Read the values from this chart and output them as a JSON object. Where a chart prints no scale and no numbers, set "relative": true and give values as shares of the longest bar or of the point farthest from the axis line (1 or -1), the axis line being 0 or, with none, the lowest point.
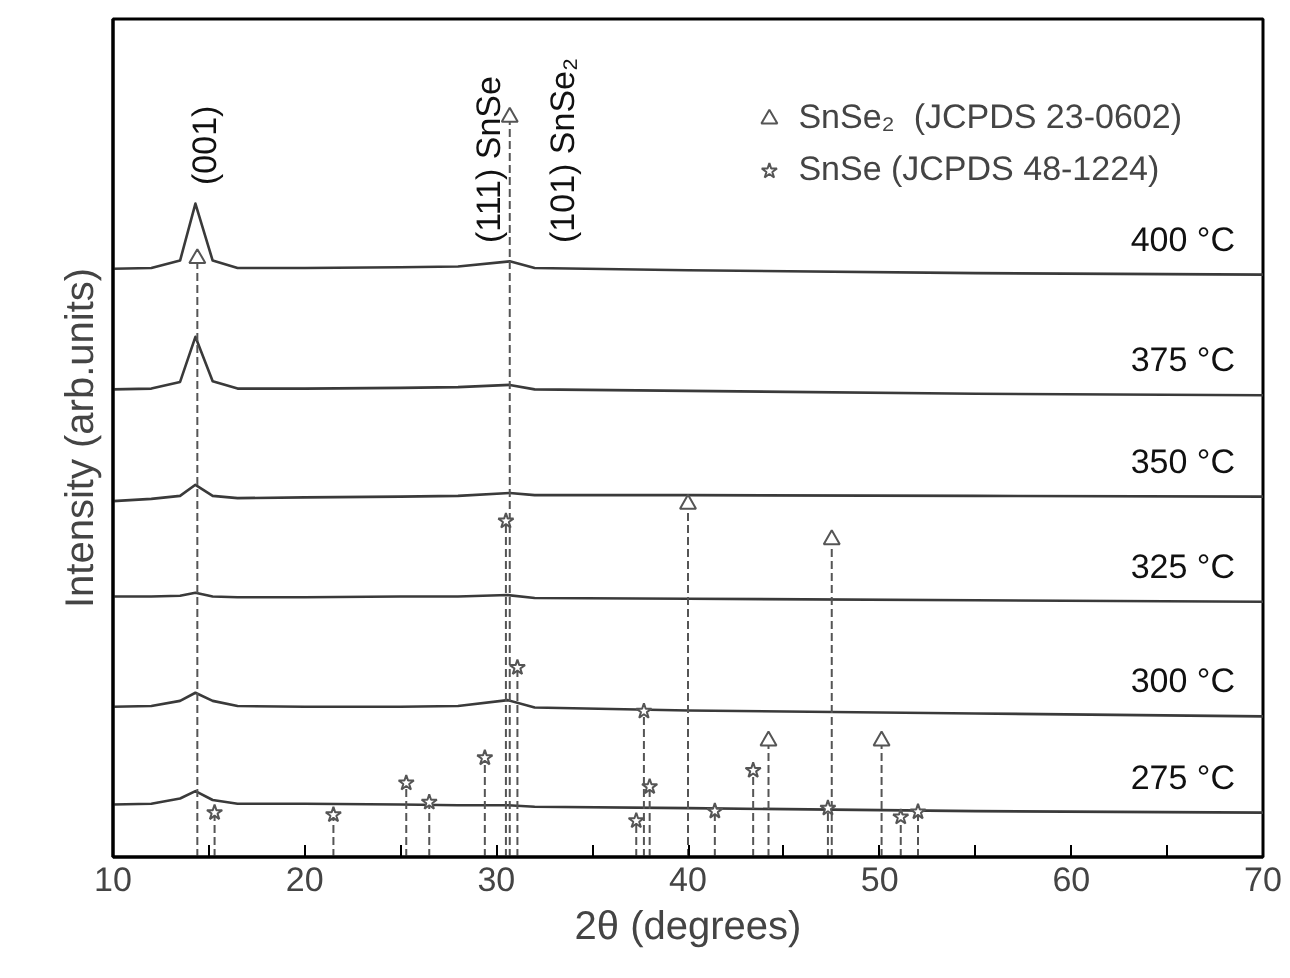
{
  "chart_data": {
    "type": "line",
    "relative": true,
    "xlabel": "2θ (degrees)",
    "ylabel": "Intensity (arb.units)",
    "xlim": [
      10,
      70
    ],
    "xticks": [
      10,
      {
        "value": 15,
        "label": null
      },
      20,
      {
        "value": 25,
        "label": null
      },
      30,
      {
        "value": 35,
        "label": null
      },
      40,
      {
        "value": 45,
        "label": null
      },
      50,
      {
        "value": 55,
        "label": null
      },
      60,
      {
        "value": 65,
        "label": null
      },
      70
    ],
    "grid": false,
    "legend": "top right",
    "line_style": "solid",
    "marker": "none",
    "series": [
      {
        "name": "400 °C",
        "color": "#3a3a3a",
        "x": [
          10,
          12,
          13.5,
          14.3,
          15.2,
          16.5,
          20,
          25,
          28,
          30.7,
          32,
          40,
          55,
          70
        ],
        "values": [
          0.795,
          0.796,
          0.806,
          0.883,
          0.806,
          0.796,
          0.796,
          0.797,
          0.798,
          0.805,
          0.796,
          0.793,
          0.789,
          0.787
        ]
      },
      {
        "name": "375 °C",
        "color": "#3a3a3a",
        "x": [
          10,
          12,
          13.5,
          14.3,
          15.2,
          16.5,
          20,
          25,
          28,
          30.7,
          32,
          40,
          55,
          70
        ],
        "values": [
          0.632,
          0.633,
          0.642,
          0.703,
          0.643,
          0.633,
          0.633,
          0.634,
          0.635,
          0.638,
          0.632,
          0.63,
          0.626,
          0.624
        ]
      },
      {
        "name": "350 °C",
        "color": "#3a3a3a",
        "x": [
          10,
          12,
          13.5,
          14.3,
          15.2,
          16.5,
          20,
          25,
          28,
          30.7,
          32,
          40,
          55,
          70
        ],
        "values": [
          0.481,
          0.484,
          0.488,
          0.503,
          0.488,
          0.485,
          0.486,
          0.487,
          0.488,
          0.492,
          0.489,
          0.489,
          0.488,
          0.487
        ]
      },
      {
        "name": "325 °C",
        "color": "#3a3a3a",
        "x": [
          10,
          12,
          13.5,
          14.3,
          15.2,
          16.5,
          20,
          25,
          28,
          30.6,
          32,
          40,
          55,
          70
        ],
        "values": [
          0.352,
          0.352,
          0.353,
          0.357,
          0.352,
          0.351,
          0.351,
          0.352,
          0.352,
          0.354,
          0.35,
          0.349,
          0.347,
          0.345
        ]
      },
      {
        "name": "300 °C",
        "color": "#3a3a3a",
        "x": [
          10,
          12,
          13.5,
          14.3,
          15.2,
          16.5,
          20,
          25,
          28,
          30.6,
          32,
          40,
          55,
          70
        ],
        "values": [
          0.203,
          0.204,
          0.211,
          0.222,
          0.211,
          0.204,
          0.203,
          0.203,
          0.204,
          0.212,
          0.202,
          0.198,
          0.194,
          0.19
        ]
      },
      {
        "name": "275 °C",
        "color": "#3a3a3a",
        "x": [
          10,
          12,
          13.5,
          14.3,
          15.2,
          16.5,
          20,
          25,
          28,
          30.6,
          32,
          40,
          55,
          70
        ],
        "values": [
          0.071,
          0.072,
          0.079,
          0.089,
          0.077,
          0.072,
          0.072,
          0.071,
          0.07,
          0.07,
          0.068,
          0.066,
          0.062,
          0.06
        ]
      },
      {
        "name": "SnSe₂  (JCPDS 23-0602)",
        "type": "lollipop",
        "marker": "triangle",
        "line_style": "dashed",
        "color": "#555555",
        "x": [
          14.4,
          30.7,
          40.0,
          44.2,
          47.5,
          50.1
        ],
        "values": [
          0.809,
          1,
          0.477,
          0.157,
          0.429,
          0.157
        ]
      },
      {
        "name": "SnSe (JCPDS 48-1224)",
        "type": "lollipop",
        "marker": "star",
        "line_style": "dashed",
        "color": "#555555",
        "x": [
          15.3,
          21.5,
          25.3,
          26.5,
          29.4,
          30.5,
          31.1,
          37.3,
          37.7,
          38.0,
          41.4,
          43.4,
          47.3,
          51.1,
          52.0
        ],
        "values": [
          0.06,
          0.057,
          0.1,
          0.074,
          0.134,
          0.454,
          0.256,
          0.049,
          0.197,
          0.095,
          0.062,
          0.117,
          0.066,
          0.054,
          0.061
        ]
      }
    ],
    "annotations": [
      "(001)",
      "(111) SnSe",
      "(101) SnSe₂"
    ]
  }
}
